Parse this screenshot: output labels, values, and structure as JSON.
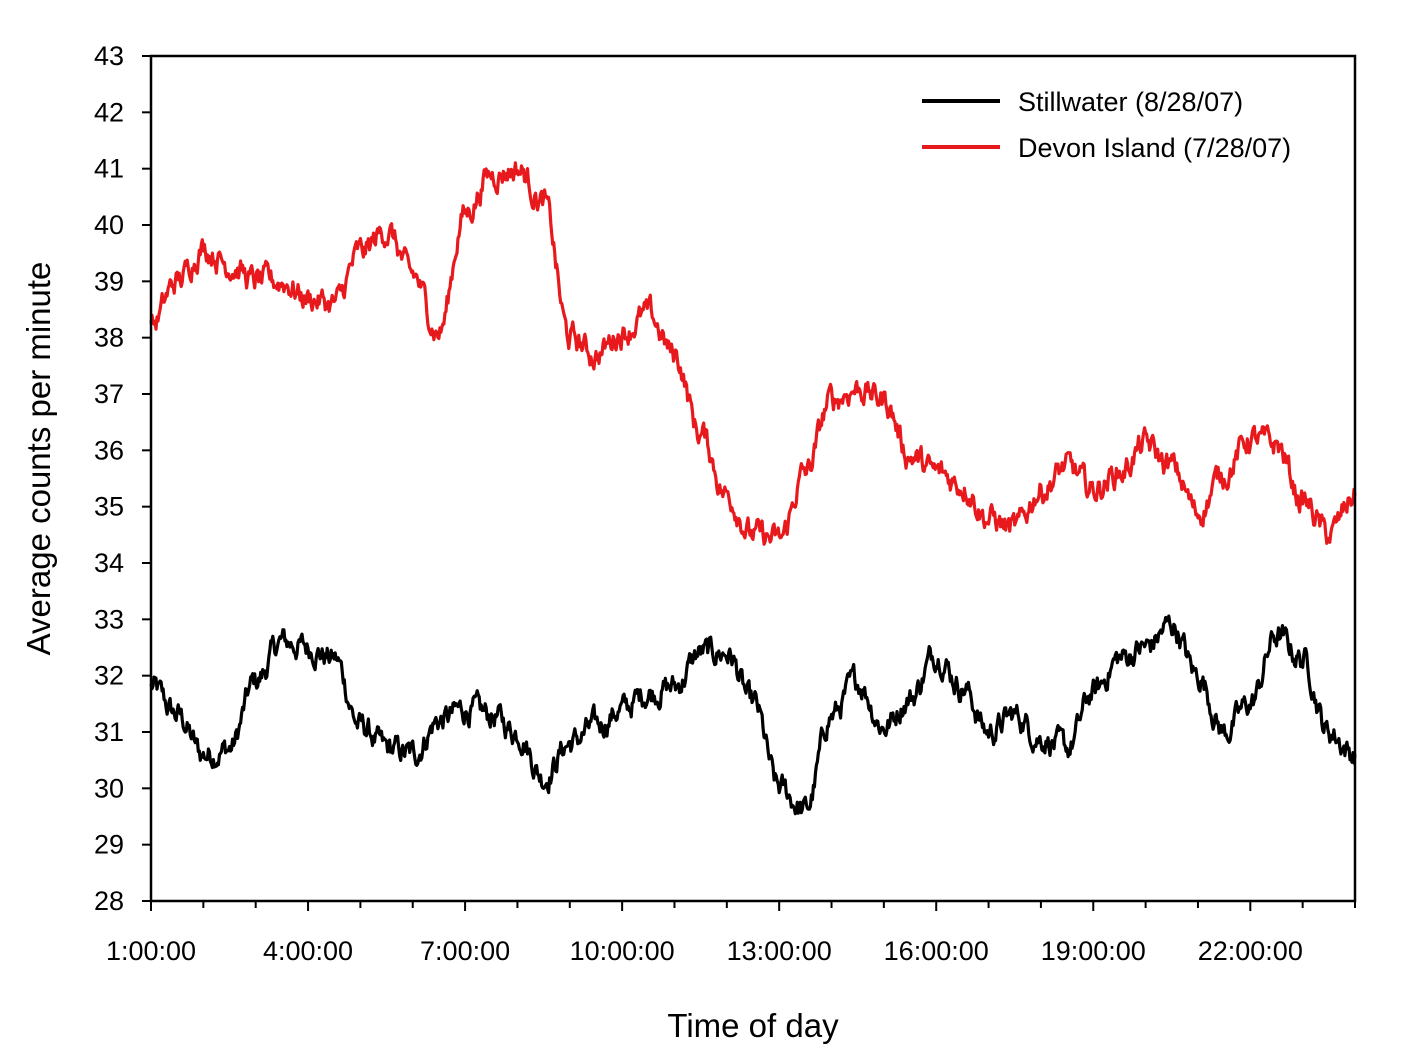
{
  "chart_data": {
    "type": "line",
    "title": "",
    "xlabel": "Time of day",
    "ylabel": "Average counts per minute",
    "xlim": [
      "1:00:00",
      "24:00:00"
    ],
    "ylim": [
      28,
      43
    ],
    "x_tick_labels": [
      "1:00:00",
      "4:00:00",
      "7:00:00",
      "10:00:00",
      "13:00:00",
      "16:00:00",
      "19:00:00",
      "22:00:00"
    ],
    "y_ticks": [
      28,
      29,
      30,
      31,
      32,
      33,
      34,
      35,
      36,
      37,
      38,
      39,
      40,
      41,
      42,
      43
    ],
    "grid": false,
    "legend_position": "top-right",
    "series": [
      {
        "name": "Stillwater (8/28/07)",
        "color": "#000000",
        "time_hours": [
          1.0,
          1.5,
          2.0,
          2.5,
          3.0,
          3.5,
          4.0,
          4.5,
          5.0,
          5.5,
          6.0,
          6.5,
          7.0,
          7.5,
          8.0,
          8.5,
          9.0,
          9.5,
          10.0,
          10.5,
          11.0,
          11.5,
          12.0,
          12.5,
          13.0,
          13.5,
          14.0,
          14.5,
          15.0,
          15.5,
          16.0,
          16.5,
          17.0,
          17.5,
          18.0,
          18.5,
          19.0,
          19.5,
          20.0,
          20.5,
          21.0,
          21.5,
          22.0,
          22.5,
          23.0,
          23.5,
          24.0
        ],
        "values": [
          31.8,
          31.3,
          30.6,
          30.7,
          31.9,
          32.6,
          32.5,
          32.3,
          31.1,
          30.7,
          30.6,
          31.2,
          31.4,
          31.3,
          31.0,
          30.2,
          30.8,
          31.1,
          31.4,
          31.7,
          31.8,
          32.4,
          32.4,
          31.5,
          30.0,
          29.6,
          31.3,
          31.9,
          31.1,
          31.6,
          32.4,
          31.8,
          31.0,
          31.3,
          30.9,
          30.7,
          31.7,
          32.3,
          32.5,
          32.9,
          32.0,
          31.0,
          31.5,
          32.7,
          32.3,
          31.0,
          30.6
        ]
      },
      {
        "name": "Devon Island (7/28/07)",
        "color": "#e8191c",
        "time_hours": [
          1.0,
          1.5,
          2.0,
          2.5,
          3.0,
          3.5,
          4.0,
          4.5,
          5.0,
          5.5,
          6.0,
          6.5,
          7.0,
          7.5,
          8.0,
          8.5,
          9.0,
          9.5,
          10.0,
          10.5,
          11.0,
          11.5,
          12.0,
          12.5,
          13.0,
          13.5,
          14.0,
          14.5,
          15.0,
          15.5,
          16.0,
          16.5,
          17.0,
          17.5,
          18.0,
          18.5,
          19.0,
          19.5,
          20.0,
          20.5,
          21.0,
          21.5,
          22.0,
          22.5,
          23.0,
          23.5,
          24.0
        ],
        "values": [
          38.2,
          39.0,
          39.6,
          39.3,
          39.0,
          39.0,
          38.7,
          38.6,
          39.5,
          39.9,
          39.1,
          38.1,
          40.2,
          40.9,
          41.0,
          40.4,
          38.0,
          37.7,
          38.1,
          38.4,
          37.7,
          36.3,
          35.2,
          34.5,
          34.4,
          35.6,
          36.9,
          37.1,
          36.9,
          35.9,
          35.6,
          35.4,
          34.8,
          34.6,
          35.3,
          35.7,
          35.3,
          35.6,
          36.1,
          35.7,
          34.9,
          35.6,
          36.2,
          36.1,
          35.1,
          34.5,
          35.2
        ]
      }
    ]
  }
}
